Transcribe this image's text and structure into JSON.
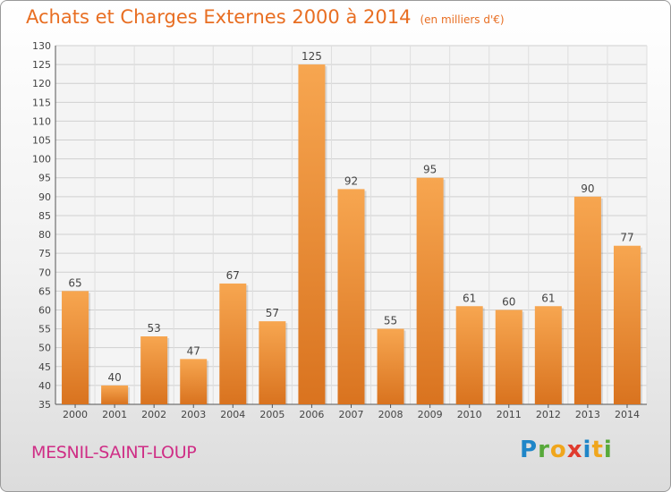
{
  "header": {
    "title": "Achats et Charges Externes 2000 à 2014",
    "subtitle": "(en milliers d'€)"
  },
  "footer": {
    "commune": "MESNIL-SAINT-LOUP",
    "logo_text": "Proxiti"
  },
  "colors": {
    "title": "#e86e22",
    "bar_light": "#f7a650",
    "bar_dark": "#d9731f",
    "commune": "#cf2e86"
  },
  "chart_data": {
    "type": "bar",
    "title": "Achats et Charges Externes 2000 à 2014",
    "subtitle": "(en milliers d'€)",
    "categories": [
      "2000",
      "2001",
      "2002",
      "2003",
      "2004",
      "2005",
      "2006",
      "2007",
      "2008",
      "2009",
      "2010",
      "2011",
      "2012",
      "2013",
      "2014"
    ],
    "values": [
      65,
      40,
      53,
      47,
      67,
      57,
      125,
      92,
      55,
      95,
      61,
      60,
      61,
      90,
      77
    ],
    "ylim": [
      35,
      130
    ],
    "yticks": [
      35,
      40,
      45,
      50,
      55,
      60,
      65,
      70,
      75,
      80,
      85,
      90,
      95,
      100,
      105,
      110,
      115,
      120,
      125,
      130
    ],
    "grid": true,
    "legend": "none"
  }
}
